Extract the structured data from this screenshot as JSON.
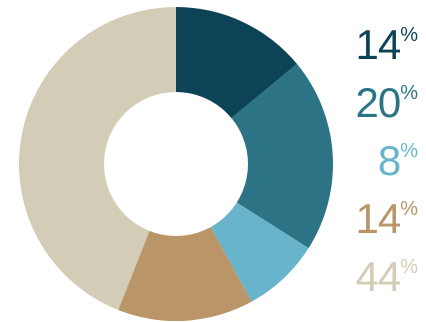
{
  "chart_data": {
    "type": "pie",
    "variant": "donut",
    "start_angle_deg": 0,
    "direction": "clockwise",
    "slices": [
      {
        "value": 14,
        "label": "14",
        "suffix": "%",
        "color": "#0c4356"
      },
      {
        "value": 20,
        "label": "20",
        "suffix": "%",
        "color": "#2c7485"
      },
      {
        "value": 8,
        "label": "8",
        "suffix": "%",
        "color": "#68b5cb"
      },
      {
        "value": 14,
        "label": "14",
        "suffix": "%",
        "color": "#b99567"
      },
      {
        "value": 44,
        "label": "44",
        "suffix": "%",
        "color": "#d3ccb6"
      }
    ],
    "legend_placement": "right"
  }
}
